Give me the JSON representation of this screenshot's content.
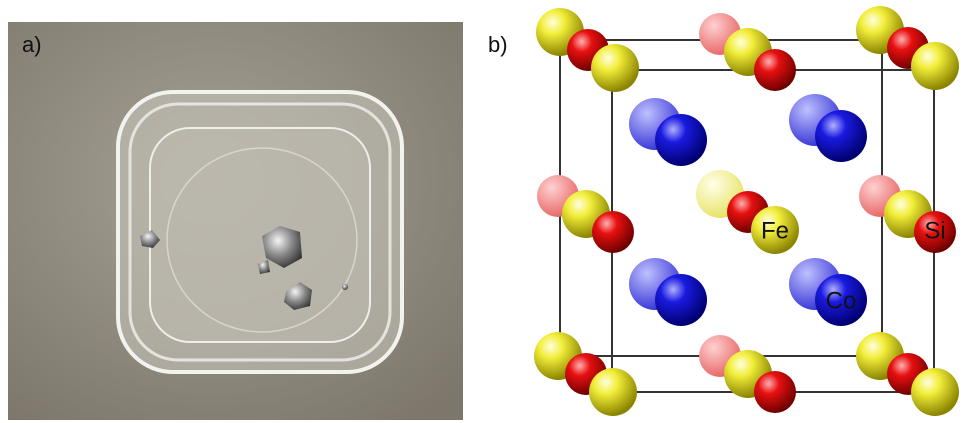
{
  "panel_a": {
    "label": "a)"
  },
  "panel_b": {
    "label": "b)",
    "atom_labels": [
      "Fe",
      "Si",
      "Co"
    ]
  }
}
